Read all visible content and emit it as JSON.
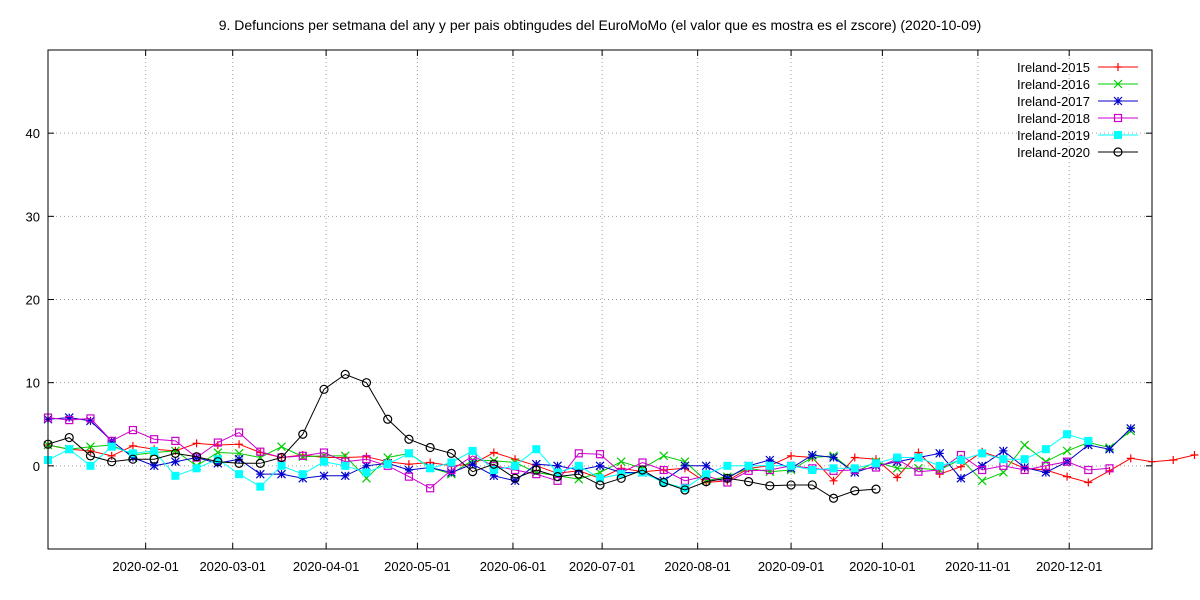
{
  "chart_data": {
    "type": "line",
    "title": "9. Defuncions per setmana del any y per pais obtingudes del EuroMoMo (el valor que es mostra es el zscore) (2020-10-09)",
    "xlabel": "",
    "ylabel": "",
    "x_axis": "week",
    "xlim": [
      1,
      53
    ],
    "ylim": [
      -10,
      50
    ],
    "y_ticks": [
      0,
      10,
      20,
      30,
      40
    ],
    "x_ticks": [
      {
        "label": "2020-02-01",
        "week": 5.6
      },
      {
        "label": "2020-03-01",
        "week": 9.7
      },
      {
        "label": "2020-04-01",
        "week": 14.1
      },
      {
        "label": "2020-05-01",
        "week": 18.4
      },
      {
        "label": "2020-06-01",
        "week": 22.9
      },
      {
        "label": "2020-07-01",
        "week": 27.1
      },
      {
        "label": "2020-08-01",
        "week": 31.6
      },
      {
        "label": "2020-09-01",
        "week": 36.0
      },
      {
        "label": "2020-10-01",
        "week": 40.3
      },
      {
        "label": "2020-11-01",
        "week": 44.8
      },
      {
        "label": "2020-12-01",
        "week": 49.1
      }
    ],
    "grid": true,
    "legend_position": "top-right",
    "series": [
      {
        "name": "Ireland-2015",
        "color": "#ff0000",
        "marker": "plus",
        "start": 1,
        "values": [
          2.5,
          2.0,
          1.8,
          1.2,
          2.4,
          2.0,
          1.8,
          2.7,
          2.5,
          2.6,
          1.6,
          1.0,
          1.3,
          1.0,
          1.0,
          1.1,
          0.5,
          0.2,
          0.4,
          0.0,
          0.2,
          1.6,
          0.8,
          0.0,
          -0.9,
          -0.6,
          -1.5,
          -0.3,
          -0.7,
          -0.5,
          -0.3,
          -2.0,
          -1.8,
          -0.3,
          0.0,
          1.2,
          1.0,
          -1.8,
          1.0,
          0.8,
          -1.4,
          1.6,
          -1.0,
          -0.1,
          1.7,
          0.8,
          -0.3,
          -0.5,
          -1.3,
          -2.0,
          -0.6,
          0.9,
          0.5,
          0.7,
          1.3
        ]
      },
      {
        "name": "Ireland-2016",
        "color": "#00cc00",
        "marker": "cross",
        "start": 1,
        "values": [
          2.5,
          2.0,
          2.3,
          2.5,
          1.3,
          1.6,
          1.8,
          0.0,
          1.6,
          1.5,
          1.0,
          2.3,
          1.1,
          1.2,
          1.2,
          -1.5,
          1.0,
          1.5,
          -0.2,
          -1.0,
          0.7,
          0.6,
          0.4,
          -0.8,
          -1.2,
          -1.6,
          -0.8,
          0.5,
          -0.3,
          1.2,
          0.5,
          -1.8,
          -1.3,
          -0.3,
          -0.7,
          -0.5,
          1.0,
          1.2,
          -0.8,
          0.5,
          -0.3,
          -0.3,
          -0.5,
          0.8,
          -1.8,
          -0.8,
          2.5,
          0.5,
          1.8,
          2.8,
          2.2,
          4.2
        ]
      },
      {
        "name": "Ireland-2017",
        "color": "#0000cc",
        "marker": "star",
        "start": 1,
        "values": [
          5.6,
          5.8,
          5.4,
          3.0,
          1.0,
          0.0,
          0.5,
          1.0,
          0.3,
          0.8,
          -1.0,
          -1.0,
          -1.5,
          -1.2,
          -1.2,
          0.0,
          0.3,
          -0.5,
          -0.2,
          -0.8,
          0.2,
          -1.2,
          -1.8,
          0.2,
          0.0,
          -0.5,
          0.0,
          -0.8,
          -0.8,
          -1.8,
          0.0,
          0.0,
          -1.5,
          0.0,
          0.7,
          -0.3,
          1.3,
          1.0,
          -0.8,
          0.0,
          0.5,
          1.0,
          1.5,
          -1.5,
          0.0,
          1.8,
          -0.2,
          -0.8,
          0.5,
          2.5,
          2.0,
          4.5
        ]
      },
      {
        "name": "Ireland-2018",
        "color": "#cc00cc",
        "marker": "square",
        "start": 1,
        "values": [
          5.8,
          5.5,
          5.7,
          3.0,
          4.3,
          3.2,
          3.0,
          1.0,
          2.8,
          4.0,
          1.7,
          1.0,
          1.2,
          1.6,
          0.5,
          0.8,
          0.0,
          -1.3,
          -2.7,
          -0.5,
          1.2,
          0.0,
          -0.5,
          -1.0,
          -1.8,
          1.5,
          1.4,
          -0.8,
          0.4,
          -0.5,
          -1.8,
          -1.2,
          -2.0,
          -0.6,
          -0.5,
          0.0,
          -0.3,
          -0.6,
          -0.5,
          -0.2,
          0.8,
          -0.7,
          -0.5,
          1.3,
          -0.5,
          0.0,
          -0.5,
          0.0,
          0.5,
          -0.5,
          -0.3
        ]
      },
      {
        "name": "Ireland-2019",
        "color": "#00ffff",
        "marker": "filled-square",
        "start": 1,
        "values": [
          0.7,
          2.0,
          0.0,
          2.3,
          1.5,
          1.8,
          -1.2,
          -0.3,
          0.8,
          -1.0,
          -2.5,
          0.0,
          -1.0,
          0.5,
          0.0,
          -0.8,
          0.2,
          1.5,
          -0.3,
          0.4,
          1.8,
          -0.5,
          0.0,
          2.0,
          -0.8,
          0.0,
          -1.5,
          -1.0,
          -0.8,
          -2.0,
          -2.7,
          -1.0,
          0.0,
          0.0,
          0.0,
          0.0,
          -0.5,
          -0.3,
          -0.3,
          0.3,
          1.0,
          1.0,
          0.0,
          0.7,
          1.5,
          0.8,
          0.8,
          2.0,
          3.8,
          3.0
        ]
      },
      {
        "name": "Ireland-2020",
        "color": "#000000",
        "marker": "circle",
        "start": 1,
        "values": [
          2.6,
          3.4,
          1.2,
          0.5,
          0.8,
          0.8,
          1.5,
          1.1,
          0.5,
          0.3,
          0.3,
          1.0,
          3.8,
          9.2,
          11.0,
          10.0,
          5.6,
          3.2,
          2.2,
          1.5,
          -0.7,
          0.2,
          -1.5,
          -0.5,
          -1.3,
          -1.0,
          -2.3,
          -1.5,
          -0.5,
          -2.0,
          -2.9,
          -1.9,
          -1.5,
          -1.9,
          -2.4,
          -2.3,
          -2.3,
          -3.9,
          -3.0,
          -2.8
        ]
      }
    ]
  }
}
